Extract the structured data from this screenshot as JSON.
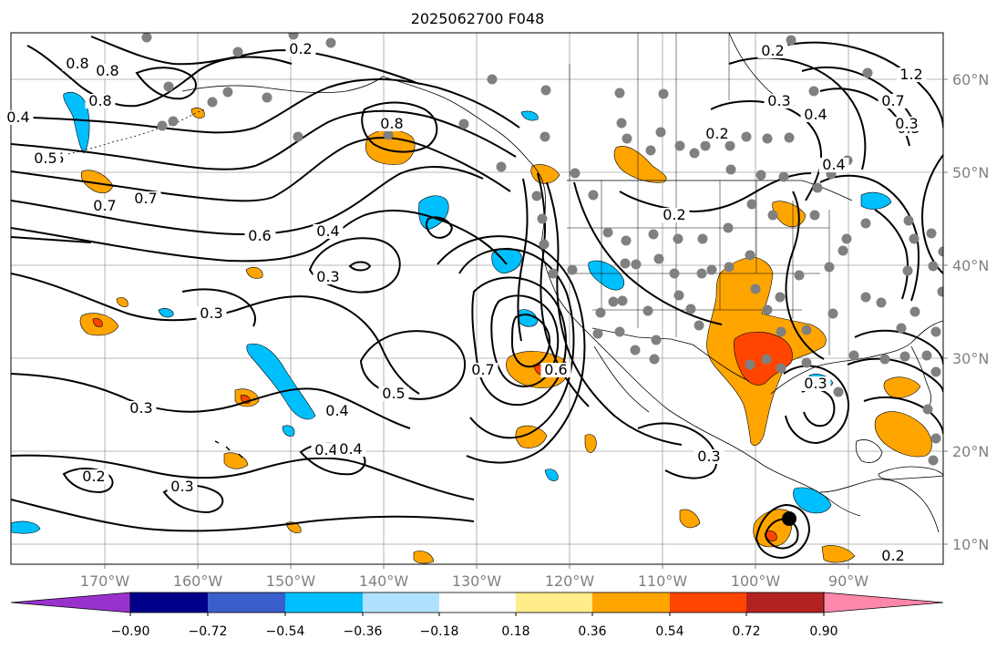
{
  "title": "2025062700 F048",
  "lon_ticks": [
    "170°W",
    "160°W",
    "150°W",
    "140°W",
    "130°W",
    "120°W",
    "110°W",
    "100°W",
    "90°W"
  ],
  "lat_ticks": [
    "60°N",
    "50°N",
    "40°N",
    "30°N",
    "20°N",
    "10°N"
  ],
  "colorbar": {
    "colors": [
      "#9932cc",
      "#00008b",
      "#3a5fcd",
      "#00bfff",
      "#b0e2ff",
      "#ffffff",
      "#ffec8b",
      "#ffa500",
      "#ff4500",
      "#b22222",
      "#ff88aa"
    ],
    "tick_labels": [
      "−0.90",
      "−0.72",
      "−0.54",
      "−0.36",
      "−0.18",
      "0.18",
      "0.36",
      "0.54",
      "0.72",
      "0.90"
    ]
  },
  "contour_labels": [
    "0.8",
    "0.8",
    "0.4",
    "0.5",
    "0.6",
    "0.7",
    "0.2",
    "0.5",
    "0.8",
    "0.8",
    "0.7",
    "0.6",
    "0.4",
    "0.3",
    "0.3",
    "0.3",
    "0.4",
    "0.4",
    "0.5",
    "0.4",
    "0.2",
    "0.3",
    "0.7",
    "0.6",
    "0.2",
    "0.2",
    "0.3",
    "0.4",
    "0.3",
    "0.4",
    "1.2",
    "0.7",
    "0.3",
    "0.2",
    "0.3",
    "0.3",
    "0.2"
  ]
}
